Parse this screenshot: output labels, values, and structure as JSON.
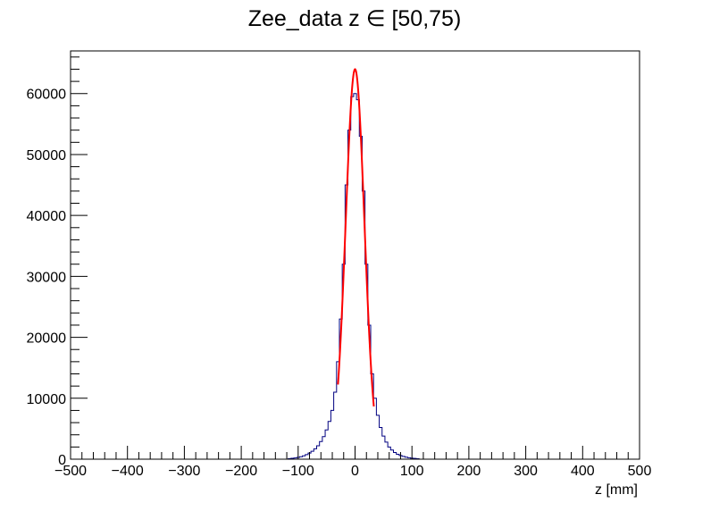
{
  "chart_data": {
    "type": "bar",
    "title": "Zee_data z  ∈ [50,75)",
    "xlabel": "z [mm]",
    "ylabel": "",
    "xlim": [
      -500,
      500
    ],
    "ylim": [
      0,
      67000
    ],
    "grid": false,
    "legend": "none",
    "x_ticks": [
      -500,
      -400,
      -300,
      -200,
      -100,
      0,
      100,
      200,
      300,
      400,
      500
    ],
    "x_tick_labels": [
      "−500",
      "−400",
      "−300",
      "−200",
      "−100",
      "0",
      "100",
      "200",
      "300",
      "400",
      "500"
    ],
    "y_ticks": [
      0,
      10000,
      20000,
      30000,
      40000,
      50000,
      60000
    ],
    "y_tick_labels": [
      "0",
      "10000",
      "20000",
      "30000",
      "40000",
      "50000",
      "60000"
    ],
    "bin_width": 5,
    "bins": [
      {
        "x": -115,
        "y": 100
      },
      {
        "x": -110,
        "y": 150
      },
      {
        "x": -105,
        "y": 200
      },
      {
        "x": -100,
        "y": 300
      },
      {
        "x": -95,
        "y": 400
      },
      {
        "x": -90,
        "y": 550
      },
      {
        "x": -85,
        "y": 750
      },
      {
        "x": -80,
        "y": 1000
      },
      {
        "x": -75,
        "y": 1300
      },
      {
        "x": -70,
        "y": 1700
      },
      {
        "x": -65,
        "y": 2200
      },
      {
        "x": -60,
        "y": 2900
      },
      {
        "x": -55,
        "y": 3700
      },
      {
        "x": -50,
        "y": 4800
      },
      {
        "x": -45,
        "y": 6200
      },
      {
        "x": -40,
        "y": 8000
      },
      {
        "x": -35,
        "y": 11000
      },
      {
        "x": -30,
        "y": 16000
      },
      {
        "x": -25,
        "y": 23000
      },
      {
        "x": -20,
        "y": 32000
      },
      {
        "x": -15,
        "y": 45000
      },
      {
        "x": -10,
        "y": 54000
      },
      {
        "x": -5,
        "y": 59500
      },
      {
        "x": 0,
        "y": 60000
      },
      {
        "x": 5,
        "y": 59000
      },
      {
        "x": 10,
        "y": 53000
      },
      {
        "x": 15,
        "y": 44000
      },
      {
        "x": 20,
        "y": 32000
      },
      {
        "x": 25,
        "y": 22000
      },
      {
        "x": 30,
        "y": 14000
      },
      {
        "x": 35,
        "y": 10000
      },
      {
        "x": 40,
        "y": 7200
      },
      {
        "x": 45,
        "y": 5200
      },
      {
        "x": 50,
        "y": 3800
      },
      {
        "x": 55,
        "y": 2800
      },
      {
        "x": 60,
        "y": 2000
      },
      {
        "x": 65,
        "y": 1500
      },
      {
        "x": 70,
        "y": 1100
      },
      {
        "x": 75,
        "y": 800
      },
      {
        "x": 80,
        "y": 600
      },
      {
        "x": 85,
        "y": 450
      },
      {
        "x": 90,
        "y": 330
      },
      {
        "x": 95,
        "y": 240
      },
      {
        "x": 100,
        "y": 170
      },
      {
        "x": 105,
        "y": 120
      },
      {
        "x": 110,
        "y": 80
      }
    ],
    "fit": {
      "type": "gaussian",
      "amplitude": 64000,
      "mean": 0,
      "sigma": 16.5,
      "range": [
        -30,
        33
      ],
      "color": "#ff0000"
    },
    "histogram_color": "#000080"
  }
}
